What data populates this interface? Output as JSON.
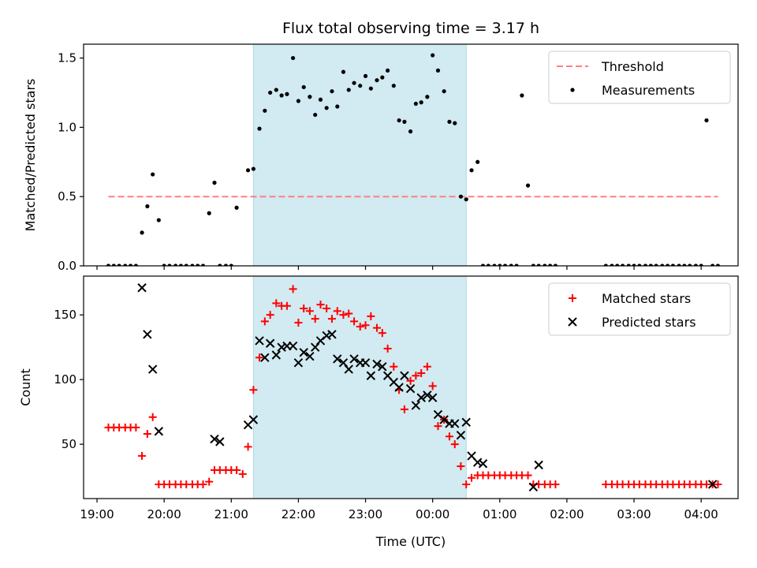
{
  "chart_data": [
    {
      "type": "scatter",
      "title": "Flux total observing time = 3.17 h",
      "xlabel": "",
      "ylabel": "Matched/Predicted stars",
      "ylim": [
        0,
        1.6
      ],
      "yticks": [
        0.0,
        0.5,
        1.0,
        1.5
      ],
      "ytick_labels": [
        "0.0",
        "0.5",
        "1.0",
        "1.5"
      ],
      "xlim_hours": [
        18.8,
        28.55
      ],
      "shaded_region_hours": [
        21.33,
        24.5
      ],
      "shade_color": "#add8e6",
      "legend": {
        "position": "upper right",
        "entries": [
          "Threshold",
          "Measurements"
        ]
      },
      "series": [
        {
          "name": "Threshold",
          "kind": "dashed-line",
          "color": "#ff7f7f",
          "x_hours": [
            19.17,
            28.25
          ],
          "y": [
            0.5,
            0.5
          ]
        },
        {
          "name": "Measurements",
          "kind": "points",
          "color": "#000000",
          "x_hours": [
            19.17,
            19.25,
            19.33,
            19.42,
            19.5,
            19.58,
            19.67,
            19.75,
            19.83,
            19.92,
            20.0,
            20.08,
            20.17,
            20.25,
            20.33,
            20.42,
            20.5,
            20.58,
            20.67,
            20.75,
            20.83,
            20.92,
            21.0,
            21.08,
            21.25,
            21.33,
            21.42,
            21.5,
            21.58,
            21.67,
            21.75,
            21.83,
            21.92,
            22.0,
            22.08,
            22.17,
            22.25,
            22.33,
            22.42,
            22.5,
            22.58,
            22.67,
            22.75,
            22.83,
            22.92,
            23.0,
            23.08,
            23.17,
            23.25,
            23.33,
            23.42,
            23.5,
            23.58,
            23.67,
            23.75,
            23.83,
            23.92,
            24.0,
            24.08,
            24.17,
            24.25,
            24.33,
            24.42,
            24.5,
            24.58,
            24.67,
            24.75,
            24.83,
            24.92,
            25.0,
            25.08,
            25.17,
            25.25,
            25.33,
            25.42,
            25.5,
            25.58,
            25.67,
            25.75,
            25.83,
            26.58,
            26.67,
            26.75,
            26.83,
            26.92,
            27.0,
            27.08,
            27.17,
            27.25,
            27.33,
            27.42,
            27.5,
            27.58,
            27.67,
            27.75,
            27.83,
            27.92,
            28.0,
            28.08,
            28.17,
            28.25
          ],
          "y": [
            0,
            0,
            0,
            0,
            0,
            0,
            0.24,
            0.43,
            0.66,
            0.33,
            0,
            0,
            0,
            0,
            0,
            0,
            0,
            0,
            0.38,
            0.6,
            0,
            0,
            0,
            0.42,
            0.69,
            0.7,
            0.99,
            1.12,
            1.25,
            1.27,
            1.23,
            1.24,
            1.5,
            1.19,
            1.29,
            1.22,
            1.09,
            1.2,
            1.14,
            1.26,
            1.15,
            1.4,
            1.27,
            1.32,
            1.3,
            1.37,
            1.28,
            1.34,
            1.36,
            1.41,
            1.3,
            1.05,
            1.04,
            0.97,
            1.17,
            1.18,
            1.22,
            1.52,
            1.41,
            1.26,
            1.04,
            1.03,
            0.5,
            0.48,
            0.69,
            0.75,
            0,
            0,
            0,
            0,
            0,
            0,
            0,
            1.23,
            0.58,
            0,
            0,
            0,
            0,
            0,
            0,
            0,
            0,
            0,
            0,
            0,
            0,
            0,
            0,
            0,
            0,
            0,
            0,
            0,
            0,
            0,
            0,
            0,
            1.05,
            0,
            0
          ]
        }
      ]
    },
    {
      "type": "scatter",
      "title": "",
      "xlabel": "Time (UTC)",
      "ylabel": "Count",
      "ylim": [
        8,
        180
      ],
      "yticks": [
        50,
        100,
        150
      ],
      "ytick_labels": [
        "50",
        "100",
        "150"
      ],
      "xticks_hours": [
        19,
        20,
        21,
        22,
        23,
        24,
        25,
        26,
        27,
        28
      ],
      "xtick_labels": [
        "19:00",
        "20:00",
        "21:00",
        "22:00",
        "23:00",
        "00:00",
        "01:00",
        "02:00",
        "03:00",
        "04:00"
      ],
      "xlim_hours": [
        18.8,
        28.55
      ],
      "shaded_region_hours": [
        21.33,
        24.5
      ],
      "shade_color": "#add8e6",
      "legend": {
        "position": "upper right",
        "entries": [
          "Matched stars",
          "Predicted stars"
        ]
      },
      "series": [
        {
          "name": "Matched stars",
          "marker": "+",
          "color": "#ff0000",
          "x_hours": [
            19.17,
            19.25,
            19.33,
            19.42,
            19.5,
            19.58,
            19.67,
            19.75,
            19.83,
            19.92,
            20.0,
            20.08,
            20.17,
            20.25,
            20.33,
            20.42,
            20.5,
            20.58,
            20.67,
            20.75,
            20.83,
            20.92,
            21.0,
            21.08,
            21.17,
            21.25,
            21.33,
            21.42,
            21.5,
            21.58,
            21.67,
            21.75,
            21.83,
            21.92,
            22.0,
            22.08,
            22.17,
            22.25,
            22.33,
            22.42,
            22.5,
            22.58,
            22.67,
            22.75,
            22.83,
            22.92,
            23.0,
            23.08,
            23.17,
            23.25,
            23.33,
            23.42,
            23.5,
            23.58,
            23.67,
            23.75,
            23.83,
            23.92,
            24.0,
            24.08,
            24.17,
            24.25,
            24.33,
            24.42,
            24.5,
            24.58,
            24.67,
            24.75,
            24.83,
            24.92,
            25.0,
            25.08,
            25.17,
            25.25,
            25.33,
            25.42,
            25.5,
            25.58,
            25.67,
            25.75,
            25.83,
            26.58,
            26.67,
            26.75,
            26.83,
            26.92,
            27.0,
            27.08,
            27.17,
            27.25,
            27.33,
            27.42,
            27.5,
            27.58,
            27.67,
            27.75,
            27.83,
            27.92,
            28.0,
            28.08,
            28.17,
            28.25
          ],
          "y": [
            63,
            63,
            63,
            63,
            63,
            63,
            41,
            58,
            71,
            19,
            19,
            19,
            19,
            19,
            19,
            19,
            19,
            19,
            21,
            30,
            30,
            30,
            30,
            30,
            27,
            48,
            92,
            117,
            145,
            150,
            159,
            157,
            157,
            170,
            144,
            155,
            153,
            147,
            158,
            155,
            147,
            153,
            150,
            151,
            145,
            141,
            142,
            149,
            140,
            136,
            124,
            110,
            92,
            77,
            99,
            103,
            105,
            110,
            95,
            64,
            69,
            56,
            50,
            33,
            19,
            24,
            26,
            26,
            26,
            26,
            26,
            26,
            26,
            26,
            26,
            26,
            19,
            19,
            19,
            19,
            19,
            19,
            19,
            19,
            19,
            19,
            19,
            19,
            19,
            19,
            19,
            19,
            19,
            19,
            19,
            19,
            19,
            19,
            19,
            19,
            19,
            19
          ]
        },
        {
          "name": "Predicted stars",
          "marker": "x",
          "color": "#000000",
          "x_hours": [
            19.67,
            19.75,
            19.83,
            19.92,
            20.75,
            20.83,
            21.25,
            21.33,
            21.42,
            21.5,
            21.58,
            21.67,
            21.75,
            21.83,
            21.92,
            22.0,
            22.08,
            22.17,
            22.25,
            22.33,
            22.42,
            22.5,
            22.58,
            22.67,
            22.75,
            22.83,
            22.92,
            23.0,
            23.08,
            23.17,
            23.25,
            23.33,
            23.42,
            23.5,
            23.58,
            23.67,
            23.75,
            23.83,
            23.92,
            24.0,
            24.08,
            24.17,
            24.25,
            24.33,
            24.42,
            24.5,
            24.58,
            24.67,
            24.75,
            25.5,
            25.58,
            28.17
          ],
          "y": [
            171,
            135,
            108,
            60,
            54,
            52,
            65,
            69,
            130,
            117,
            128,
            119,
            125,
            126,
            126,
            113,
            121,
            118,
            125,
            130,
            134,
            135,
            116,
            113,
            108,
            116,
            113,
            113,
            103,
            112,
            110,
            103,
            98,
            94,
            103,
            93,
            80,
            86,
            88,
            86,
            73,
            69,
            66,
            66,
            57,
            67,
            41,
            36,
            35,
            17,
            34,
            19
          ]
        }
      ]
    }
  ]
}
